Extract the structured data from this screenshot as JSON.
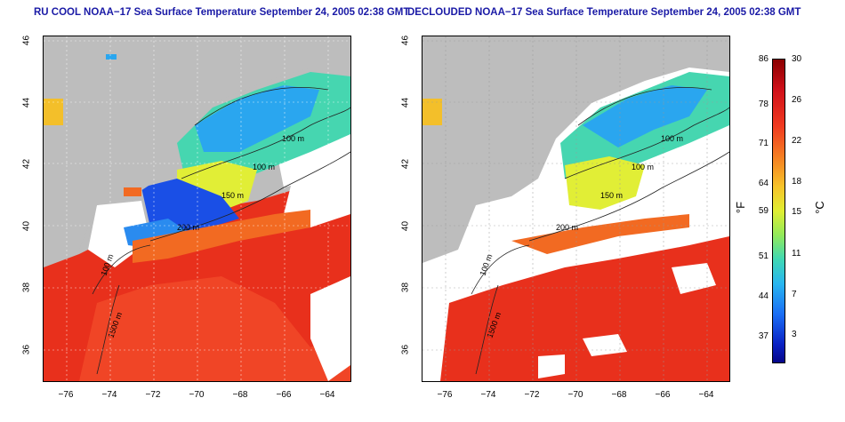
{
  "left_panel": {
    "title": "RU COOL NOAA−17 Sea Surface Temperature September 24, 2005 02:38 GMT"
  },
  "right_panel": {
    "title": "DECLOUDED NOAA−17 Sea Surface Temperature September 24, 2005 02:38 GMT"
  },
  "axes": {
    "lat_ticks": [
      "46",
      "44",
      "42",
      "40",
      "38",
      "36"
    ],
    "lon_ticks": [
      "−76",
      "−74",
      "−72",
      "−70",
      "−68",
      "−66",
      "−64"
    ]
  },
  "contours": {
    "labels": [
      "100 m",
      "100 m",
      "150 m",
      "200 m",
      "100 m",
      "1500 m"
    ]
  },
  "colorbar": {
    "fahrenheit_ticks": [
      "86",
      "78",
      "71",
      "64",
      "59",
      "51",
      "44",
      "37"
    ],
    "celsius_ticks": [
      "30",
      "26",
      "22",
      "18",
      "15",
      "11",
      "7",
      "3"
    ],
    "unit_f": "°F",
    "unit_c": "°C",
    "colors": [
      "#8b0000",
      "#f03a20",
      "#f6c32a",
      "#e0ee32",
      "#3fd8b4",
      "#1a6ef5",
      "#06068a"
    ]
  }
}
